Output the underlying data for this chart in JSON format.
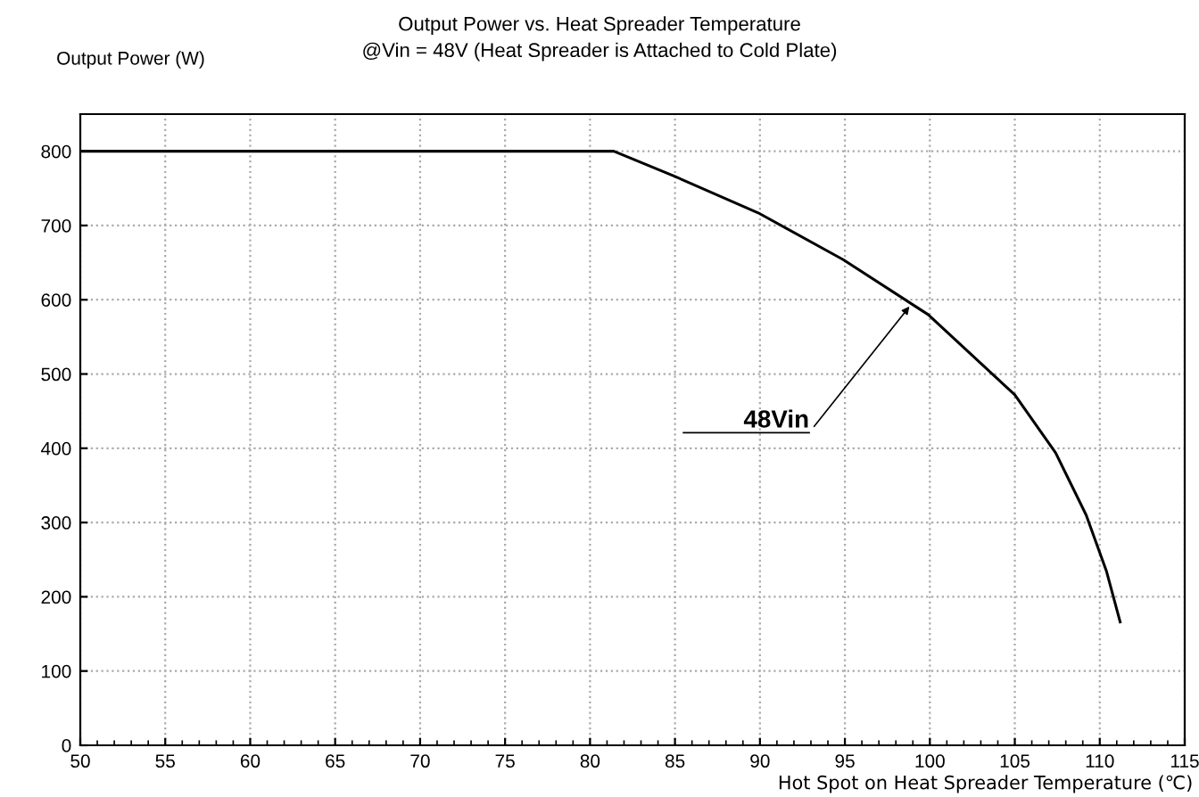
{
  "chart_data": {
    "type": "line",
    "title": "Output Power vs. Heat Spreader Temperature",
    "subtitle": "@Vin = 48V (Heat Spreader is Attached to Cold Plate)",
    "xlabel": "Hot Spot on Heat Spreader Temperature (℃)",
    "ylabel": "Output Power (W)",
    "series": [
      {
        "color": "#000000",
        "x": [
          50,
          81.4,
          84.9,
          89.9,
          94.9,
          99.9,
          105.0,
          107.4,
          109.2,
          110.4,
          111.2
        ],
        "values": [
          800,
          800,
          767,
          717,
          654,
          580,
          472,
          394,
          310,
          234,
          166
        ]
      }
    ],
    "annotations": [
      {
        "text": "48Vin",
        "x": 98.8,
        "y": 591
      }
    ],
    "xlim": [
      50,
      115
    ],
    "xticks": [
      50,
      55,
      60,
      65,
      70,
      75,
      80,
      85,
      90,
      95,
      100,
      105,
      110,
      115
    ],
    "ylim": [
      0,
      850
    ],
    "yticks": [
      0,
      100,
      200,
      300,
      400,
      500,
      600,
      700,
      800
    ],
    "grid": true,
    "legend": false,
    "marker": "none",
    "line_style": "solid"
  }
}
